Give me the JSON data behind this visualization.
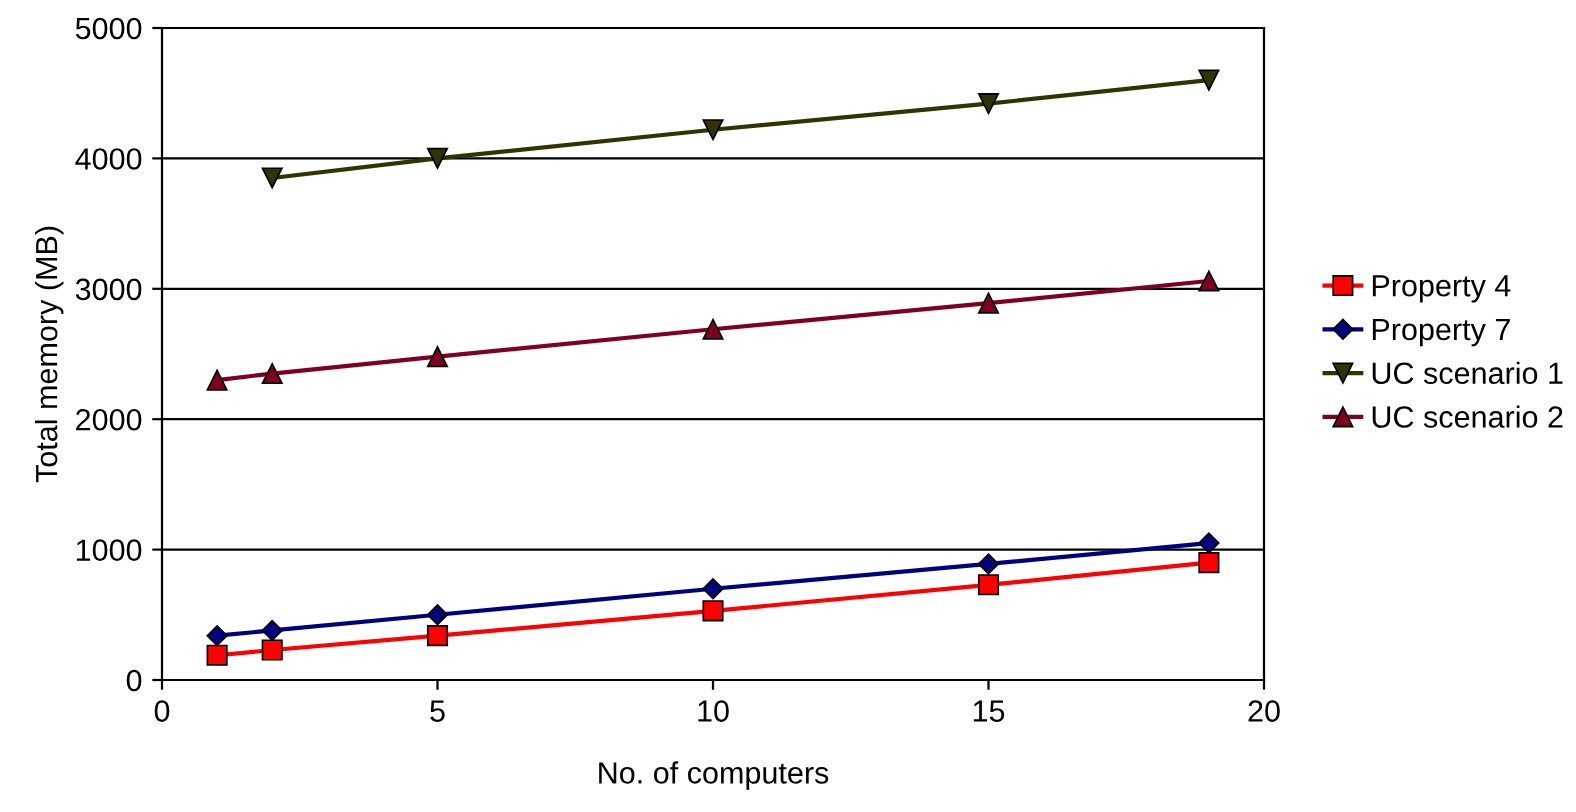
{
  "chart_data": {
    "type": "line",
    "xlabel": "No. of computers",
    "ylabel": "Total memory (MB)",
    "xlim": [
      0,
      20
    ],
    "xticks": [
      0,
      5,
      10,
      15,
      20
    ],
    "ylim": [
      0,
      5000
    ],
    "yticks": [
      0,
      1000,
      2000,
      3000,
      4000,
      5000
    ],
    "grid": "y",
    "legend": "right",
    "series": [
      {
        "name": "Property 4",
        "color": "#ff0000",
        "marker": "square",
        "x": [
          1,
          2,
          5,
          10,
          15,
          19
        ],
        "values": [
          190,
          230,
          340,
          530,
          730,
          900
        ]
      },
      {
        "name": "Property 7",
        "color": "#000080",
        "marker": "diamond",
        "x": [
          1,
          2,
          5,
          10,
          15,
          19
        ],
        "values": [
          340,
          380,
          500,
          700,
          890,
          1050
        ]
      },
      {
        "name": "UC scenario 1",
        "color": "#333300",
        "marker": "triangle_down",
        "x": [
          2,
          5,
          10,
          15,
          19
        ],
        "values": [
          3850,
          4000,
          4220,
          4420,
          4600
        ]
      },
      {
        "name": "UC scenario 2",
        "color": "#800020",
        "marker": "triangle",
        "x": [
          1,
          2,
          5,
          10,
          15,
          19
        ],
        "values": [
          2300,
          2350,
          2480,
          2690,
          2890,
          3060
        ]
      }
    ]
  }
}
